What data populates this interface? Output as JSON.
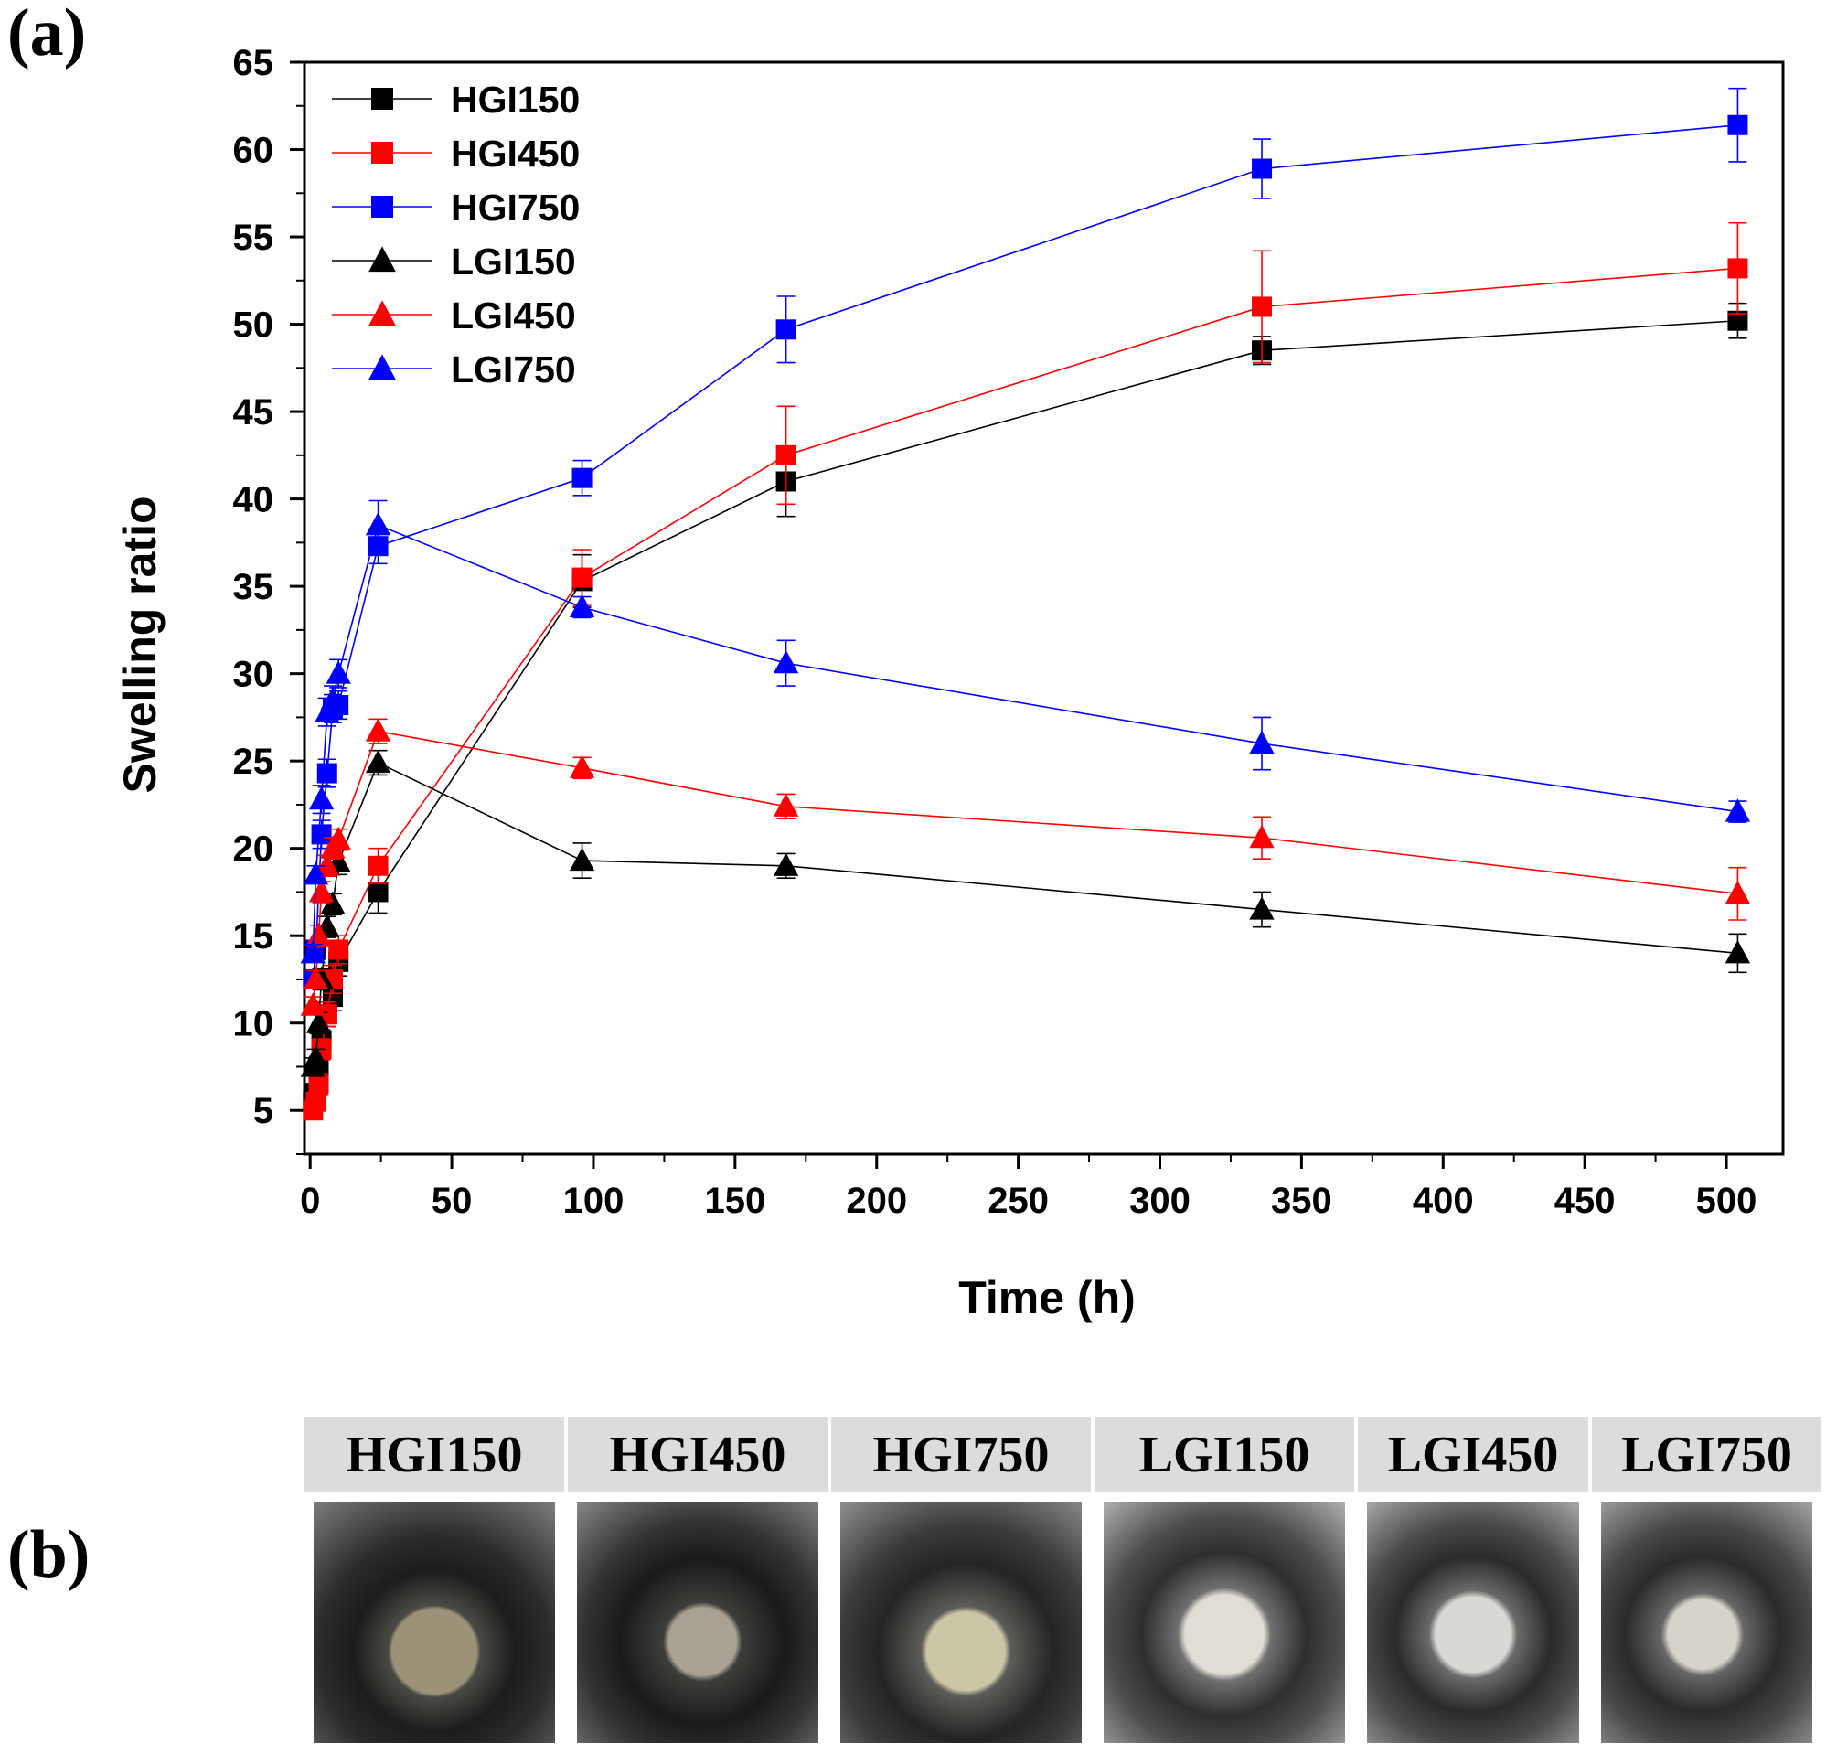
{
  "panel_a_label": "(a)",
  "panel_b_label": "(b)",
  "chart_data": {
    "type": "line",
    "xlabel": "Time (h)",
    "ylabel": "Swelling ratio",
    "xlim": [
      -2,
      520
    ],
    "ylim": [
      2.5,
      65
    ],
    "xticks": [
      0,
      50,
      100,
      150,
      200,
      250,
      300,
      350,
      400,
      450,
      500
    ],
    "yticks": [
      5,
      10,
      15,
      20,
      25,
      30,
      35,
      40,
      45,
      50,
      55,
      60,
      65
    ],
    "legend_position": "top-left",
    "grid": false,
    "series": [
      {
        "name": "HGI150",
        "color": "#000000",
        "marker": "square",
        "x": [
          1,
          2,
          3,
          4,
          6,
          8,
          10,
          24,
          96,
          168,
          336,
          504
        ],
        "y": [
          5.5,
          6.0,
          7.5,
          9.0,
          10.5,
          11.5,
          13.5,
          17.5,
          35.3,
          41.0,
          48.5,
          50.2
        ],
        "err": [
          0.5,
          0.5,
          0.6,
          0.6,
          0.7,
          0.8,
          0.8,
          1.2,
          1.5,
          2.0,
          0.8,
          1.0
        ]
      },
      {
        "name": "HGI450",
        "color": "#ff0000",
        "marker": "square",
        "x": [
          1,
          2,
          3,
          4,
          6,
          8,
          10,
          24,
          96,
          168,
          336,
          504
        ],
        "y": [
          5.0,
          5.5,
          6.5,
          8.5,
          10.5,
          12.5,
          14.2,
          19.0,
          35.5,
          42.5,
          51.0,
          53.2
        ],
        "err": [
          0.5,
          0.5,
          0.6,
          0.6,
          0.7,
          0.8,
          0.8,
          1.0,
          1.6,
          2.8,
          3.2,
          2.6
        ]
      },
      {
        "name": "HGI750",
        "color": "#0000ff",
        "marker": "square",
        "x": [
          1,
          2,
          4,
          6,
          8,
          10,
          24,
          96,
          168,
          336,
          504
        ],
        "y": [
          12.5,
          14.2,
          20.8,
          24.3,
          28.0,
          28.2,
          37.3,
          41.2,
          49.7,
          58.9,
          61.4
        ],
        "err": [
          0.5,
          0.5,
          0.8,
          0.8,
          0.8,
          0.8,
          1.0,
          1.0,
          1.9,
          1.7,
          2.1
        ]
      },
      {
        "name": "LGI150",
        "color": "#000000",
        "marker": "triangle",
        "x": [
          1,
          2,
          3,
          4,
          6,
          8,
          10,
          24,
          96,
          168,
          336,
          504
        ],
        "y": [
          7.5,
          8.0,
          10.0,
          12.5,
          15.5,
          16.8,
          19.2,
          24.9,
          19.3,
          19.0,
          16.5,
          14.0
        ],
        "err": [
          0.5,
          0.5,
          0.6,
          0.6,
          0.6,
          0.6,
          0.7,
          0.7,
          1.0,
          0.7,
          1.0,
          1.1
        ]
      },
      {
        "name": "LGI450",
        "color": "#ff0000",
        "marker": "triangle",
        "x": [
          1,
          2,
          3,
          4,
          6,
          8,
          10,
          24,
          96,
          168,
          336,
          504
        ],
        "y": [
          11.0,
          12.5,
          15.0,
          17.5,
          19.0,
          20.0,
          20.5,
          26.7,
          24.6,
          22.4,
          20.6,
          17.4
        ],
        "err": [
          0.5,
          0.5,
          0.6,
          0.6,
          0.6,
          0.6,
          0.6,
          0.7,
          0.6,
          0.7,
          1.2,
          1.5
        ]
      },
      {
        "name": "LGI750",
        "color": "#0000ff",
        "marker": "triangle",
        "x": [
          1,
          2,
          4,
          6,
          8,
          10,
          24,
          96,
          168,
          336,
          504
        ],
        "y": [
          14.0,
          18.5,
          22.8,
          27.8,
          28.5,
          30.0,
          38.5,
          33.8,
          30.6,
          26.0,
          22.1
        ],
        "err": [
          0.5,
          0.5,
          0.8,
          0.8,
          0.8,
          0.8,
          1.4,
          0.6,
          1.3,
          1.5,
          0.6
        ]
      }
    ]
  },
  "photos": {
    "headers": [
      "HGI150",
      "HGI450",
      "HGI750",
      "LGI150",
      "LGI450",
      "LGI750"
    ]
  }
}
